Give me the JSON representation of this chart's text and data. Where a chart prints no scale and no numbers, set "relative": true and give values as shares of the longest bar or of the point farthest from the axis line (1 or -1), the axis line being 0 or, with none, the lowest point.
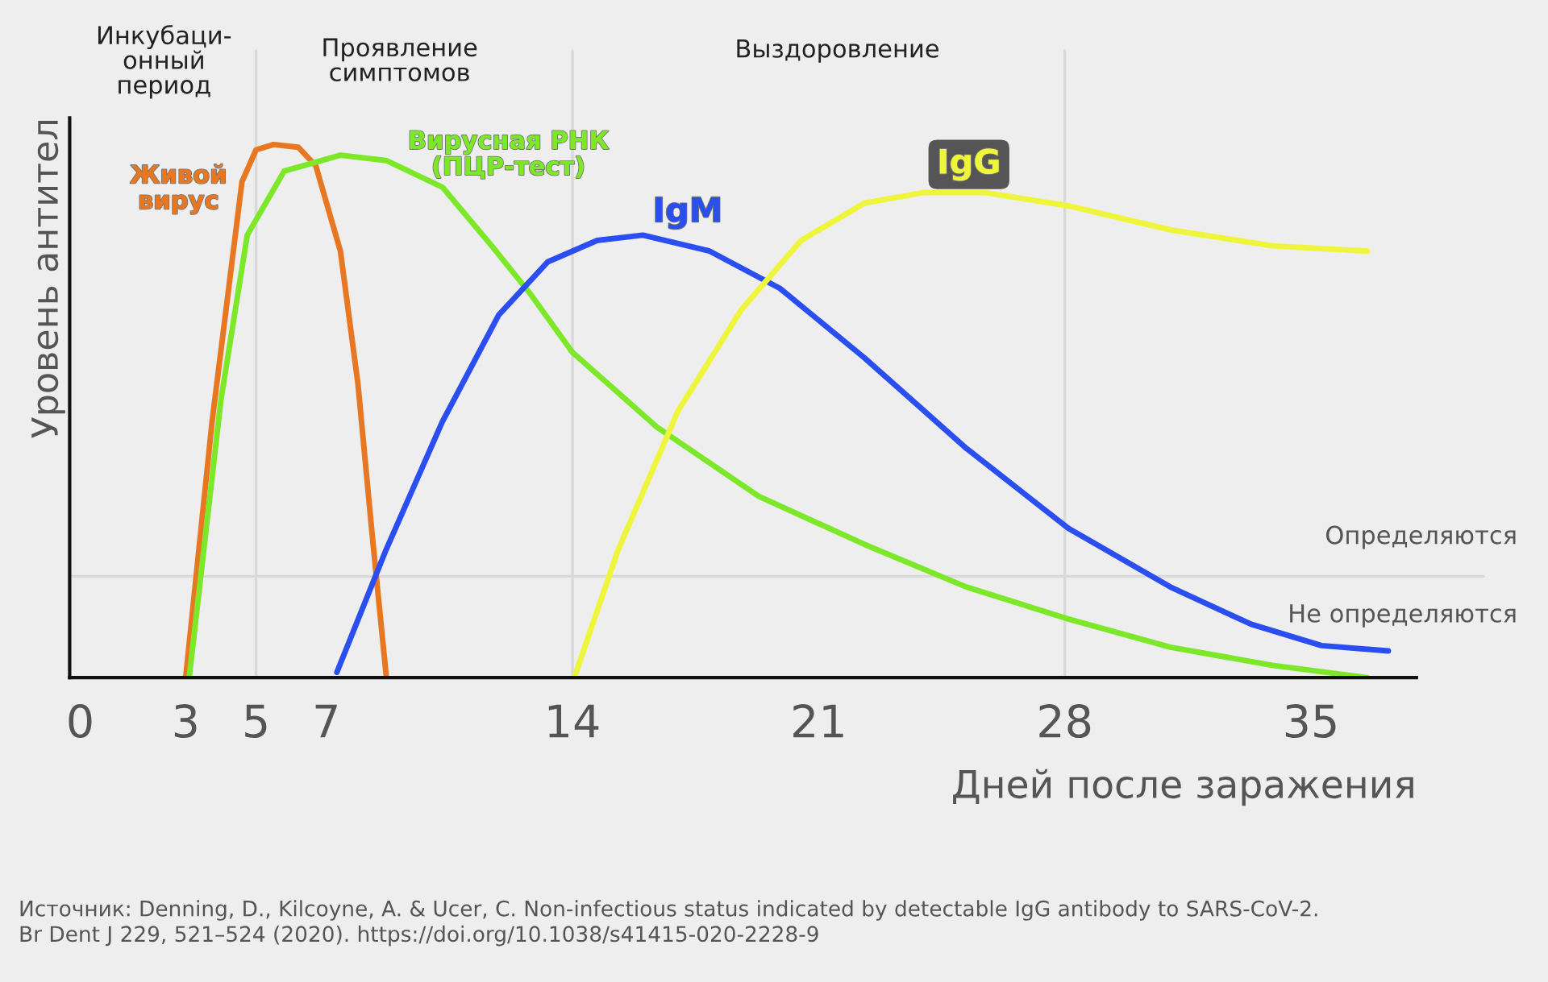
{
  "chart_data": {
    "type": "line",
    "relative": true,
    "xlabel": "Дней после заражения",
    "ylabel": "Уровень антител",
    "xlim": [
      -0.3,
      38
    ],
    "xticks": [
      0,
      3,
      5,
      7,
      14,
      21,
      28,
      35
    ],
    "marker": "none",
    "line_style": "solid",
    "series": [
      {
        "name": "Живой\nвирус",
        "color": "#e87722",
        "x": [
          3.0,
          3.75,
          4.6,
          5,
          5.5,
          6.2,
          6.7,
          7.4,
          7.9,
          8.3,
          8.7
        ],
        "values": [
          0,
          0.48,
          0.93,
          0.99,
          1.0,
          0.995,
          0.96,
          0.8,
          0.55,
          0.27,
          0.005
        ]
      },
      {
        "name": "Вирусная РНК\n(ПЦР-тест)",
        "color": "#7de82a",
        "x": [
          3.1,
          4.0,
          4.75,
          5.8,
          7.4,
          8.7,
          10.3,
          11.7,
          12.8,
          14,
          16.4,
          19.3,
          22.3,
          25.2,
          28.1,
          31,
          33.9,
          36.6
        ],
        "values": [
          0,
          0.52,
          0.83,
          0.95,
          0.98,
          0.97,
          0.92,
          0.81,
          0.72,
          0.61,
          0.47,
          0.34,
          0.25,
          0.17,
          0.11,
          0.057,
          0.023,
          0
        ]
      },
      {
        "name": "IgM",
        "color": "#2b4ef0",
        "x": [
          7.3,
          8.7,
          10.3,
          11.9,
          13.3,
          14.7,
          16,
          17.9,
          19.9,
          22.3,
          25.2,
          28.1,
          31,
          33.3,
          35.3,
          37.2
        ],
        "values": [
          0.01,
          0.24,
          0.48,
          0.68,
          0.78,
          0.82,
          0.83,
          0.8,
          0.73,
          0.6,
          0.43,
          0.28,
          0.17,
          0.1,
          0.06,
          0.05
        ]
      },
      {
        "name": "IgG",
        "color": "#eef53a",
        "x": [
          14.05,
          15.3,
          17,
          18.8,
          20.5,
          22.3,
          24,
          25.7,
          28.1,
          31,
          33.9,
          36.6
        ],
        "values": [
          0,
          0.24,
          0.5,
          0.69,
          0.82,
          0.89,
          0.91,
          0.91,
          0.885,
          0.84,
          0.81,
          0.8
        ]
      }
    ],
    "ref_lines": [
      {
        "axis": "x",
        "value": 5,
        "color": "#d9d9d9"
      },
      {
        "axis": "x",
        "value": 14,
        "color": "#d9d9d9"
      },
      {
        "axis": "x",
        "value": 28,
        "color": "#d9d9d9"
      },
      {
        "axis": "y",
        "value": 0.19,
        "label": "Определяются",
        "color": "#d9d9d9"
      }
    ],
    "annotations": [
      "Инкубаци-\nонный\nпериод",
      "Проявление\nсимптомов",
      "Выздоровление",
      "Не определяются",
      "Источник: Denning, D., Kilcoyne, A. & Ucer, C. Non-infectious status indicated by detectable IgG antibody to SARS-CoV-2.\nBr Dent J 229, 521–524 (2020). https://doi.org/10.1038/s41415-020-2228-9"
    ]
  }
}
